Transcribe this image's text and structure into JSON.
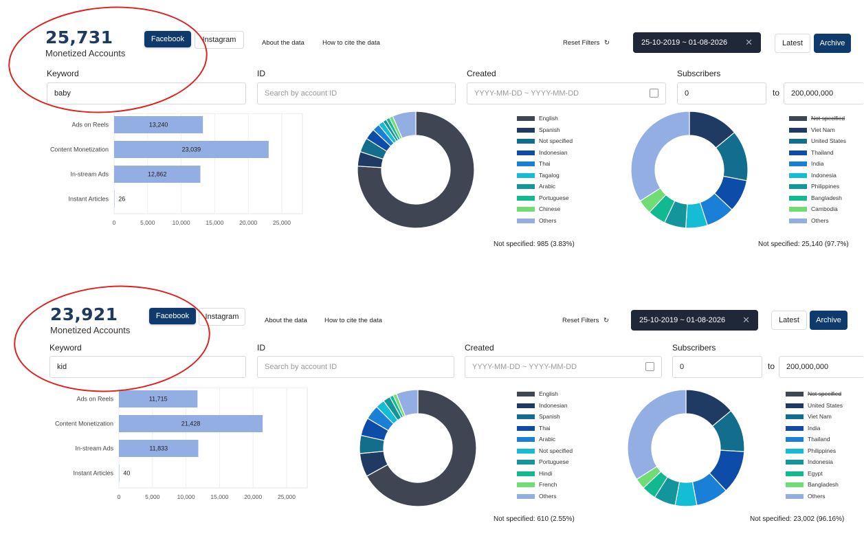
{
  "panels": [
    {
      "count": "25,731",
      "count_label": "Monetized Accounts",
      "platform_tabs": [
        "Facebook",
        "Instagram"
      ],
      "links": [
        "About the data",
        "How to cite the data"
      ],
      "reset_label": "Reset Filters",
      "date_range": "25-10-2019 ~ 01-08-2026",
      "latest_label": "Latest",
      "archive_label": "Archive",
      "filters": {
        "keyword_label": "Keyword",
        "keyword_value": "baby",
        "id_label": "ID",
        "id_placeholder": "Search by account ID",
        "created_label": "Created",
        "created_placeholder": "YYYY-MM-DD ~ YYYY-MM-DD",
        "subscribers_label": "Subscribers",
        "subs_min": "0",
        "subs_to": "to",
        "subs_max": "200,000,000"
      },
      "bar_chart": {
        "type": "bar",
        "categories": [
          "Ads on Reels",
          "Content Monetization",
          "In-stream Ads",
          "Instant Articles"
        ],
        "values": [
          13240,
          23039,
          12862,
          26
        ],
        "value_labels": [
          "13,240",
          "23,039",
          "12,862",
          "26"
        ],
        "xlim": [
          0,
          25000
        ],
        "ticks": [
          "0",
          "5,000",
          "10,000",
          "15,000",
          "20,000",
          "25,000"
        ]
      },
      "language_chart": {
        "type": "pie",
        "legend": [
          "English",
          "Spanish",
          "Not specified",
          "Indonesian",
          "Thai",
          "Tagalog",
          "Arabic",
          "Portuguese",
          "Chinese",
          "Others"
        ],
        "values": [
          76,
          4,
          4,
          3,
          2,
          1.5,
          1,
          1,
          1,
          6.5
        ],
        "not_specified": "Not specified: 985 (3.83%)"
      },
      "country_chart": {
        "type": "pie",
        "legend": [
          "Not specified",
          "Viet Nam",
          "United States",
          "Thailand",
          "India",
          "Indonesia",
          "Philippines",
          "Bangladesh",
          "Cambodia",
          "Others"
        ],
        "legend_strike_first": true,
        "values": [
          0,
          14,
          14,
          9,
          8,
          6,
          6,
          5,
          4,
          34
        ],
        "not_specified": "Not specified: 25,140 (97.7%)"
      }
    },
    {
      "count": "23,921",
      "count_label": "Monetized Accounts",
      "platform_tabs": [
        "Facebook",
        "Instagram"
      ],
      "links": [
        "About the data",
        "How to cite the data"
      ],
      "reset_label": "Reset Filters",
      "date_range": "25-10-2019 ~ 01-08-2026",
      "latest_label": "Latest",
      "archive_label": "Archive",
      "filters": {
        "keyword_label": "Keyword",
        "keyword_value": "kid",
        "id_label": "ID",
        "id_placeholder": "Search by account ID",
        "created_label": "Created",
        "created_placeholder": "YYYY-MM-DD ~ YYYY-MM-DD",
        "subscribers_label": "Subscribers",
        "subs_min": "0",
        "subs_to": "to",
        "subs_max": "200,000,000"
      },
      "bar_chart": {
        "type": "bar",
        "categories": [
          "Ads on Reels",
          "Content Monetization",
          "In-stream Ads",
          "Instant Articles"
        ],
        "values": [
          11715,
          21428,
          11833,
          40
        ],
        "value_labels": [
          "11,715",
          "21,428",
          "11,833",
          "40"
        ],
        "xlim": [
          0,
          25000
        ],
        "ticks": [
          "0",
          "5,000",
          "10,000",
          "15,000",
          "20,000",
          "25,000"
        ]
      },
      "language_chart": {
        "type": "pie",
        "legend": [
          "English",
          "Indonesian",
          "Spanish",
          "Thai",
          "Arabic",
          "Not specified",
          "Portuguese",
          "Hindi",
          "French",
          "Others"
        ],
        "values": [
          67,
          6.5,
          5,
          5,
          4,
          2.5,
          2,
          1,
          1,
          6
        ],
        "not_specified": "Not specified: 610 (2.55%)"
      },
      "country_chart": {
        "type": "pie",
        "legend": [
          "Not specified",
          "United States",
          "Viet Nam",
          "India",
          "Thailand",
          "Philippines",
          "Indonesia",
          "Egypt",
          "Bangladesh",
          "Others"
        ],
        "legend_strike_first": true,
        "values": [
          0,
          14,
          12,
          12,
          9,
          6,
          6,
          4,
          3,
          34
        ],
        "not_specified": "Not specified: 23,002 (96.16%)"
      }
    }
  ],
  "colors": {
    "language": [
      "#404553",
      "#1f3b63",
      "#136d8c",
      "#0d4ca8",
      "#1a7fd6",
      "#14bcd6",
      "#12969b",
      "#10b98f",
      "#6fdc76",
      "#93aee2"
    ],
    "country": [
      "#404553",
      "#1f3b63",
      "#136d8c",
      "#0d4ca8",
      "#1a7fd6",
      "#14bcd6",
      "#12969b",
      "#10b98f",
      "#6fdc76",
      "#93aee2"
    ],
    "bar": "#93aee2",
    "accent": "#0e3a6e",
    "annotation": "#e0201e"
  }
}
